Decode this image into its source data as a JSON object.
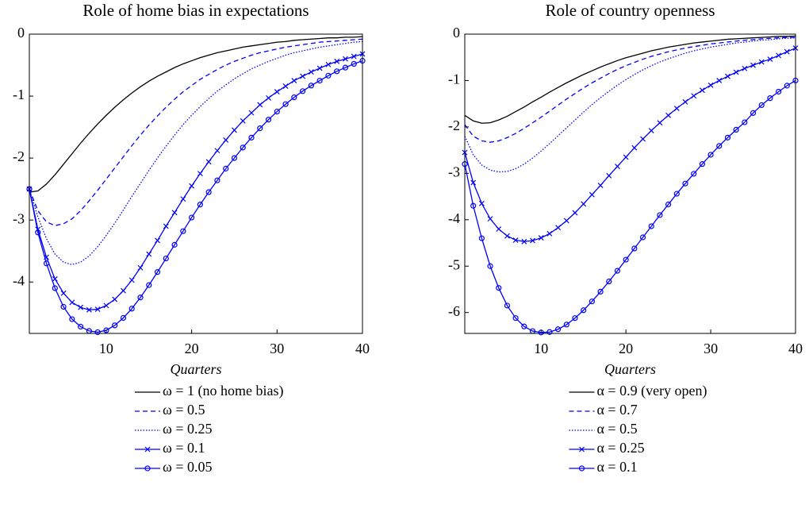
{
  "chart_data": [
    {
      "type": "line",
      "title": "Role of home bias in expectations",
      "xlabel": "Quarters",
      "x": [
        1,
        2,
        3,
        4,
        5,
        6,
        7,
        8,
        9,
        10,
        11,
        12,
        13,
        14,
        15,
        16,
        17,
        18,
        19,
        20,
        21,
        22,
        23,
        24,
        25,
        26,
        27,
        28,
        29,
        30,
        31,
        32,
        33,
        34,
        35,
        36,
        37,
        38,
        39,
        40
      ],
      "xlim": [
        1,
        40
      ],
      "xticks": [
        10,
        20,
        30,
        40
      ],
      "ylim": [
        -4.83,
        0
      ],
      "yticks": [
        0,
        -1,
        -2,
        -3,
        -4
      ],
      "series": [
        {
          "name": "ω = 1 (no home bias)",
          "color": "#000000",
          "dash": "solid",
          "marker": "none",
          "values": [
            -2.55,
            -2.53,
            -2.42,
            -2.27,
            -2.1,
            -1.93,
            -1.76,
            -1.6,
            -1.45,
            -1.31,
            -1.18,
            -1.06,
            -0.95,
            -0.85,
            -0.76,
            -0.68,
            -0.61,
            -0.54,
            -0.48,
            -0.43,
            -0.38,
            -0.34,
            -0.3,
            -0.27,
            -0.24,
            -0.21,
            -0.19,
            -0.17,
            -0.15,
            -0.13,
            -0.12,
            -0.1,
            -0.09,
            -0.08,
            -0.07,
            -0.06,
            -0.06,
            -0.05,
            -0.05,
            -0.04
          ]
        },
        {
          "name": "ω = 0.5",
          "color": "#0000ff",
          "dash": "dashed",
          "marker": "none",
          "values": [
            -2.5,
            -2.85,
            -3.03,
            -3.09,
            -3.06,
            -2.98,
            -2.85,
            -2.69,
            -2.52,
            -2.34,
            -2.16,
            -1.98,
            -1.8,
            -1.63,
            -1.47,
            -1.32,
            -1.18,
            -1.05,
            -0.93,
            -0.83,
            -0.73,
            -0.65,
            -0.57,
            -0.5,
            -0.44,
            -0.39,
            -0.34,
            -0.3,
            -0.27,
            -0.24,
            -0.21,
            -0.19,
            -0.17,
            -0.15,
            -0.13,
            -0.12,
            -0.11,
            -0.1,
            -0.09,
            -0.08
          ]
        },
        {
          "name": "ω = 0.25",
          "color": "#0000ff",
          "dash": "dotted",
          "marker": "none",
          "values": [
            -2.5,
            -2.95,
            -3.3,
            -3.55,
            -3.68,
            -3.72,
            -3.68,
            -3.58,
            -3.43,
            -3.25,
            -3.05,
            -2.84,
            -2.62,
            -2.41,
            -2.2,
            -2.0,
            -1.81,
            -1.63,
            -1.46,
            -1.31,
            -1.17,
            -1.04,
            -0.92,
            -0.82,
            -0.72,
            -0.64,
            -0.56,
            -0.5,
            -0.44,
            -0.39,
            -0.34,
            -0.3,
            -0.27,
            -0.24,
            -0.21,
            -0.19,
            -0.17,
            -0.15,
            -0.13,
            -0.12
          ]
        },
        {
          "name": "ω = 0.1",
          "color": "#0000ff",
          "dash": "solid",
          "marker": "x",
          "values": [
            -2.5,
            -3.15,
            -3.6,
            -3.95,
            -4.18,
            -4.33,
            -4.41,
            -4.45,
            -4.44,
            -4.38,
            -4.28,
            -4.14,
            -3.97,
            -3.77,
            -3.55,
            -3.33,
            -3.1,
            -2.88,
            -2.66,
            -2.45,
            -2.25,
            -2.06,
            -1.88,
            -1.71,
            -1.55,
            -1.4,
            -1.27,
            -1.14,
            -1.03,
            -0.93,
            -0.84,
            -0.75,
            -0.68,
            -0.61,
            -0.55,
            -0.49,
            -0.44,
            -0.4,
            -0.36,
            -0.32
          ]
        },
        {
          "name": "ω = 0.05",
          "color": "#0000ff",
          "dash": "solid",
          "marker": "o",
          "values": [
            -2.5,
            -3.2,
            -3.7,
            -4.1,
            -4.4,
            -4.6,
            -4.72,
            -4.79,
            -4.81,
            -4.78,
            -4.7,
            -4.58,
            -4.43,
            -4.25,
            -4.05,
            -3.84,
            -3.62,
            -3.4,
            -3.18,
            -2.96,
            -2.75,
            -2.55,
            -2.36,
            -2.17,
            -2.0,
            -1.83,
            -1.67,
            -1.52,
            -1.38,
            -1.25,
            -1.13,
            -1.02,
            -0.92,
            -0.83,
            -0.75,
            -0.67,
            -0.6,
            -0.54,
            -0.48,
            -0.43
          ]
        }
      ]
    },
    {
      "type": "line",
      "title": "Role of country openness",
      "xlabel": "Quarters",
      "x": [
        1,
        2,
        3,
        4,
        5,
        6,
        7,
        8,
        9,
        10,
        11,
        12,
        13,
        14,
        15,
        16,
        17,
        18,
        19,
        20,
        21,
        22,
        23,
        24,
        25,
        26,
        27,
        28,
        29,
        30,
        31,
        32,
        33,
        34,
        35,
        36,
        37,
        38,
        39,
        40
      ],
      "xlim": [
        1,
        40
      ],
      "xticks": [
        10,
        20,
        30,
        40
      ],
      "ylim": [
        -6.45,
        0
      ],
      "yticks": [
        0,
        -1,
        -2,
        -3,
        -4,
        -5,
        -6
      ],
      "series": [
        {
          "name": "α = 0.9 (very open)",
          "color": "#000000",
          "dash": "solid",
          "marker": "none",
          "values": [
            -1.75,
            -1.87,
            -1.92,
            -1.91,
            -1.85,
            -1.77,
            -1.67,
            -1.57,
            -1.46,
            -1.36,
            -1.25,
            -1.15,
            -1.05,
            -0.96,
            -0.87,
            -0.79,
            -0.71,
            -0.64,
            -0.57,
            -0.51,
            -0.46,
            -0.41,
            -0.36,
            -0.32,
            -0.28,
            -0.25,
            -0.22,
            -0.19,
            -0.17,
            -0.15,
            -0.13,
            -0.11,
            -0.1,
            -0.09,
            -0.08,
            -0.07,
            -0.06,
            -0.05,
            -0.05,
            -0.04
          ]
        },
        {
          "name": "α = 0.7",
          "color": "#0000ff",
          "dash": "dashed",
          "marker": "none",
          "values": [
            -1.95,
            -2.2,
            -2.3,
            -2.33,
            -2.3,
            -2.23,
            -2.14,
            -2.03,
            -1.91,
            -1.79,
            -1.66,
            -1.53,
            -1.4,
            -1.28,
            -1.16,
            -1.05,
            -0.95,
            -0.85,
            -0.76,
            -0.68,
            -0.61,
            -0.54,
            -0.48,
            -0.43,
            -0.38,
            -0.34,
            -0.3,
            -0.27,
            -0.24,
            -0.21,
            -0.19,
            -0.17,
            -0.15,
            -0.13,
            -0.12,
            -0.1,
            -0.09,
            -0.08,
            -0.07,
            -0.07
          ]
        },
        {
          "name": "α = 0.5",
          "color": "#0000ff",
          "dash": "dotted",
          "marker": "none",
          "values": [
            -2.2,
            -2.6,
            -2.82,
            -2.93,
            -2.97,
            -2.96,
            -2.9,
            -2.8,
            -2.67,
            -2.52,
            -2.36,
            -2.19,
            -2.02,
            -1.85,
            -1.68,
            -1.52,
            -1.37,
            -1.23,
            -1.1,
            -0.98,
            -0.87,
            -0.77,
            -0.68,
            -0.6,
            -0.53,
            -0.47,
            -0.41,
            -0.36,
            -0.32,
            -0.28,
            -0.25,
            -0.22,
            -0.19,
            -0.17,
            -0.15,
            -0.13,
            -0.12,
            -0.1,
            -0.09,
            -0.08
          ]
        },
        {
          "name": "α = 0.25",
          "color": "#0000ff",
          "dash": "solid",
          "marker": "x",
          "values": [
            -2.55,
            -3.2,
            -3.65,
            -3.98,
            -4.2,
            -4.35,
            -4.44,
            -4.47,
            -4.45,
            -4.39,
            -4.3,
            -4.17,
            -4.02,
            -3.85,
            -3.66,
            -3.46,
            -3.26,
            -3.05,
            -2.85,
            -2.65,
            -2.45,
            -2.26,
            -2.08,
            -1.91,
            -1.75,
            -1.6,
            -1.46,
            -1.33,
            -1.21,
            -1.1,
            -1.0,
            -0.91,
            -0.82,
            -0.74,
            -0.67,
            -0.6,
            -0.54,
            -0.46,
            -0.38,
            -0.3
          ]
        },
        {
          "name": "α = 0.1",
          "color": "#0000ff",
          "dash": "solid",
          "marker": "o",
          "values": [
            -2.8,
            -3.7,
            -4.4,
            -5.0,
            -5.47,
            -5.85,
            -6.12,
            -6.3,
            -6.4,
            -6.43,
            -6.42,
            -6.36,
            -6.26,
            -6.12,
            -5.95,
            -5.76,
            -5.55,
            -5.33,
            -5.1,
            -4.86,
            -4.62,
            -4.38,
            -4.14,
            -3.9,
            -3.67,
            -3.44,
            -3.22,
            -3.01,
            -2.8,
            -2.6,
            -2.41,
            -2.23,
            -2.06,
            -1.9,
            -1.7,
            -1.53,
            -1.38,
            -1.24,
            -1.11,
            -1.0
          ]
        }
      ]
    }
  ]
}
